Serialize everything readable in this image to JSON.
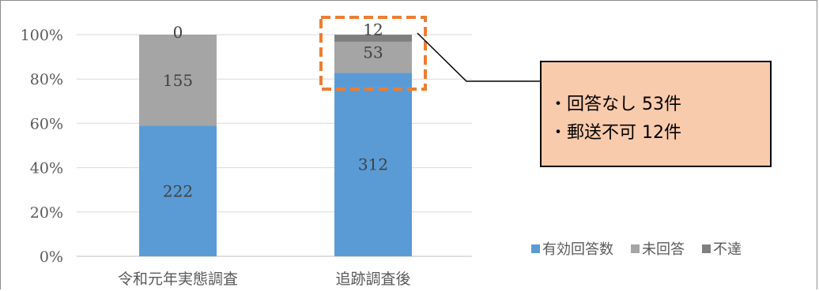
{
  "chart_data": {
    "type": "bar",
    "stacked": "percent",
    "categories": [
      "令和元年実態調査",
      "追跡調査後"
    ],
    "series": [
      {
        "name": "有効回答数",
        "color": "#5b9bd5",
        "values": [
          222,
          312
        ]
      },
      {
        "name": "未回答",
        "color": "#a5a5a5",
        "values": [
          155,
          53
        ]
      },
      {
        "name": "不達",
        "color": "#7f7f7f",
        "values": [
          0,
          12
        ]
      }
    ],
    "y_ticks": [
      "0%",
      "20%",
      "40%",
      "60%",
      "80%",
      "100%"
    ],
    "ylim": [
      0,
      100
    ],
    "grid": true,
    "legend": "bottom-right"
  },
  "callout": {
    "lines": [
      "・回答なし 53件",
      "・郵送不可 12件"
    ],
    "fill": "#f8cbad"
  },
  "highlight_box": {
    "color": "#ed7d31",
    "style": "dashed"
  }
}
